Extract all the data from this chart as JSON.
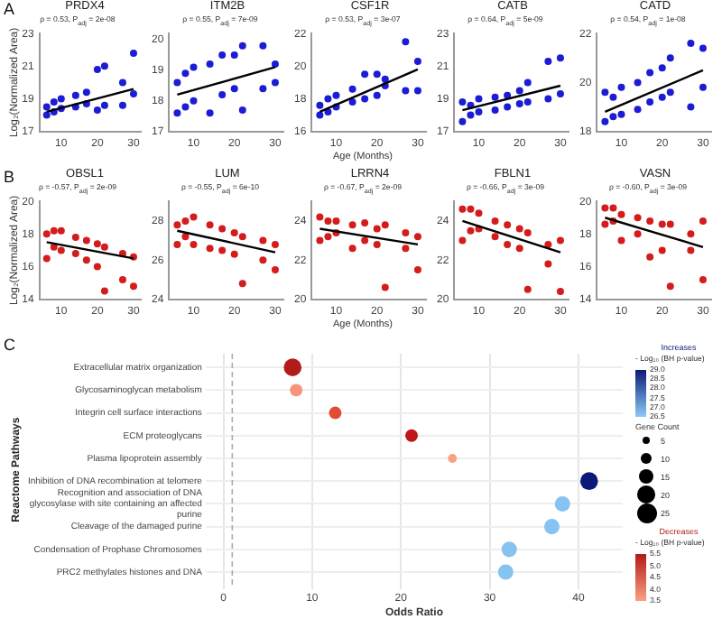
{
  "chart_data": [
    {
      "type": "scatter",
      "title": "PRDX4",
      "subtitle": "ρ = 0.53, P$_{adj}$ = 2e-08",
      "ylabel": "Log₂(Normalized Area)",
      "annotations": [
        "A"
      ],
      "xlim": [
        4,
        32
      ],
      "xticks": [
        10,
        20,
        30
      ],
      "ylim": [
        17,
        23
      ],
      "yticks": [
        17,
        19,
        21,
        23
      ],
      "marker": "circle",
      "series": [
        {
          "color": "#1c1cd4",
          "x": [
            6,
            6,
            8,
            8,
            10,
            10,
            14,
            14,
            17,
            17,
            20,
            20,
            22,
            22,
            27,
            27,
            30,
            30
          ],
          "values": [
            18.0,
            18.5,
            18.2,
            18.8,
            18.4,
            19.0,
            18.5,
            19.2,
            18.7,
            19.4,
            18.3,
            20.8,
            18.6,
            21.0,
            18.6,
            20.0,
            19.3,
            21.8
          ]
        },
        {
          "type": "line",
          "marker": "none",
          "color": "#000000",
          "x": [
            6,
            30
          ],
          "values": [
            18.2,
            19.6
          ]
        }
      ]
    },
    {
      "type": "scatter",
      "title": "ITM2B",
      "subtitle": "ρ = 0.55, P$_{adj}$ = 7e-09",
      "xlim": [
        4,
        32
      ],
      "xticks": [
        10,
        20,
        30
      ],
      "ylim": [
        17,
        20.2
      ],
      "yticks": [
        17,
        18,
        19,
        20
      ],
      "marker": "circle",
      "series": [
        {
          "color": "#1c1cd4",
          "x": [
            6,
            6,
            8,
            8,
            10,
            10,
            14,
            14,
            17,
            17,
            20,
            20,
            22,
            22,
            27,
            27,
            30,
            30
          ],
          "values": [
            17.6,
            18.6,
            17.8,
            18.9,
            18.0,
            19.1,
            17.6,
            19.2,
            18.2,
            19.5,
            18.4,
            19.5,
            17.7,
            19.8,
            18.4,
            19.8,
            18.6,
            19.2
          ]
        },
        {
          "type": "line",
          "marker": "none",
          "color": "#000000",
          "x": [
            6,
            30
          ],
          "values": [
            18.2,
            19.1
          ]
        }
      ]
    },
    {
      "type": "scatter",
      "title": "CSF1R",
      "subtitle": "ρ = 0.53, P$_{adj}$ = 3e-07",
      "xlabel": "Age (Months)",
      "xlim": [
        4,
        32
      ],
      "xticks": [
        10,
        20,
        30
      ],
      "ylim": [
        16,
        22
      ],
      "yticks": [
        16,
        18,
        20,
        22
      ],
      "marker": "circle",
      "series": [
        {
          "color": "#1c1cd4",
          "x": [
            6,
            6,
            8,
            8,
            10,
            10,
            14,
            14,
            17,
            17,
            20,
            20,
            22,
            22,
            27,
            27,
            30,
            30
          ],
          "values": [
            17.0,
            17.6,
            17.2,
            18.0,
            17.5,
            18.2,
            17.8,
            18.6,
            18.0,
            19.5,
            18.2,
            19.5,
            18.8,
            19.2,
            18.5,
            21.5,
            18.5,
            20.3
          ]
        },
        {
          "type": "line",
          "marker": "none",
          "color": "#000000",
          "x": [
            6,
            30
          ],
          "values": [
            17.2,
            19.8
          ]
        }
      ]
    },
    {
      "type": "scatter",
      "title": "CATB",
      "subtitle": "ρ = 0.64, P$_{adj}$ = 5e-09",
      "xlim": [
        4,
        32
      ],
      "xticks": [
        10,
        20,
        30
      ],
      "ylim": [
        17,
        23
      ],
      "yticks": [
        17,
        19,
        21,
        23
      ],
      "marker": "circle",
      "series": [
        {
          "color": "#1c1cd4",
          "x": [
            6,
            6,
            8,
            8,
            10,
            10,
            14,
            14,
            17,
            17,
            20,
            20,
            22,
            22,
            27,
            27,
            30,
            30
          ],
          "values": [
            17.6,
            18.8,
            18.0,
            18.6,
            18.2,
            19.0,
            18.3,
            19.1,
            18.5,
            19.2,
            18.7,
            19.5,
            18.8,
            20.0,
            19.0,
            21.3,
            19.3,
            21.5
          ]
        },
        {
          "type": "line",
          "marker": "none",
          "color": "#000000",
          "x": [
            6,
            30
          ],
          "values": [
            18.3,
            19.8
          ]
        }
      ]
    },
    {
      "type": "scatter",
      "title": "CATD",
      "subtitle": "ρ = 0.54, P$_{adj}$ = 1e-08",
      "xlim": [
        4,
        32
      ],
      "xticks": [
        10,
        20,
        30
      ],
      "ylim": [
        18,
        22
      ],
      "yticks": [
        18,
        20,
        22
      ],
      "marker": "circle",
      "series": [
        {
          "color": "#1c1cd4",
          "x": [
            6,
            6,
            8,
            8,
            10,
            10,
            14,
            14,
            17,
            17,
            20,
            20,
            22,
            22,
            27,
            27,
            30,
            30
          ],
          "values": [
            18.4,
            19.6,
            18.6,
            19.4,
            18.7,
            19.8,
            18.9,
            20.0,
            19.2,
            20.4,
            19.4,
            20.6,
            19.6,
            21.0,
            19.0,
            21.6,
            19.8,
            21.4
          ]
        },
        {
          "type": "line",
          "marker": "none",
          "color": "#000000",
          "x": [
            6,
            30
          ],
          "values": [
            18.8,
            20.5
          ]
        }
      ]
    },
    {
      "type": "scatter",
      "title": "OBSL1",
      "subtitle": "ρ = -0.57, P$_{adj}$ = 2e-09",
      "ylabel": "Log₂(Normalized Area)",
      "annotations": [
        "B"
      ],
      "xlim": [
        4,
        32
      ],
      "xticks": [
        10,
        20,
        30
      ],
      "ylim": [
        14,
        20
      ],
      "yticks": [
        14,
        16,
        18,
        20
      ],
      "marker": "circle",
      "series": [
        {
          "color": "#d41c1c",
          "x": [
            6,
            6,
            8,
            8,
            10,
            10,
            14,
            14,
            17,
            17,
            20,
            20,
            22,
            22,
            27,
            27,
            30,
            30
          ],
          "values": [
            16.5,
            18.0,
            17.2,
            18.2,
            17.0,
            18.2,
            16.8,
            17.8,
            16.4,
            17.6,
            16.0,
            17.4,
            14.5,
            17.2,
            15.2,
            16.8,
            14.8,
            16.6
          ]
        },
        {
          "type": "line",
          "marker": "none",
          "color": "#000000",
          "x": [
            6,
            30
          ],
          "values": [
            17.5,
            16.5
          ]
        }
      ]
    },
    {
      "type": "scatter",
      "title": "LUM",
      "subtitle": "ρ = -0.55, P$_{adj}$ = 6e-10",
      "xlim": [
        4,
        32
      ],
      "xticks": [
        10,
        20,
        30
      ],
      "ylim": [
        24,
        29
      ],
      "yticks": [
        24,
        26,
        28
      ],
      "marker": "circle",
      "series": [
        {
          "color": "#d41c1c",
          "x": [
            6,
            6,
            8,
            8,
            10,
            10,
            14,
            14,
            17,
            17,
            20,
            20,
            22,
            22,
            27,
            27,
            30,
            30
          ],
          "values": [
            26.8,
            27.8,
            27.2,
            28.0,
            26.8,
            28.2,
            26.6,
            27.8,
            26.5,
            27.6,
            26.3,
            27.4,
            24.8,
            27.2,
            26.0,
            27.0,
            25.5,
            26.8
          ]
        },
        {
          "type": "line",
          "marker": "none",
          "color": "#000000",
          "x": [
            6,
            30
          ],
          "values": [
            27.5,
            26.4
          ]
        }
      ]
    },
    {
      "type": "scatter",
      "title": "LRRN4",
      "subtitle": "ρ = -0.67, P$_{adj}$ = 2e-09",
      "xlabel": "Age (Months)",
      "xlim": [
        4,
        32
      ],
      "xticks": [
        10,
        20,
        30
      ],
      "ylim": [
        20,
        25
      ],
      "yticks": [
        20,
        22,
        24
      ],
      "marker": "circle",
      "series": [
        {
          "color": "#d41c1c",
          "x": [
            6,
            6,
            8,
            8,
            10,
            10,
            14,
            14,
            17,
            17,
            20,
            20,
            22,
            22,
            27,
            27,
            30,
            30
          ],
          "values": [
            23.0,
            24.2,
            23.2,
            24.0,
            23.4,
            24.0,
            22.6,
            23.8,
            23.0,
            23.9,
            22.8,
            23.6,
            20.6,
            23.8,
            22.6,
            23.4,
            21.5,
            23.2
          ]
        },
        {
          "type": "line",
          "marker": "none",
          "color": "#000000",
          "x": [
            6,
            30
          ],
          "values": [
            23.6,
            22.8
          ]
        }
      ]
    },
    {
      "type": "scatter",
      "title": "FBLN1",
      "subtitle": "ρ = -0.66, P$_{adj}$ = 3e-09",
      "xlim": [
        4,
        32
      ],
      "xticks": [
        10,
        20,
        30
      ],
      "ylim": [
        20,
        25
      ],
      "yticks": [
        20,
        22,
        24
      ],
      "marker": "circle",
      "series": [
        {
          "color": "#d41c1c",
          "x": [
            6,
            6,
            8,
            8,
            10,
            10,
            14,
            14,
            17,
            17,
            20,
            20,
            22,
            22,
            27,
            27,
            30,
            30
          ],
          "values": [
            23.0,
            24.6,
            23.5,
            24.6,
            23.6,
            24.4,
            23.2,
            24.0,
            22.8,
            23.8,
            22.6,
            23.6,
            20.5,
            23.4,
            21.8,
            22.8,
            20.4,
            23.0
          ]
        },
        {
          "type": "line",
          "marker": "none",
          "color": "#000000",
          "x": [
            6,
            30
          ],
          "values": [
            24.0,
            22.4
          ]
        }
      ]
    },
    {
      "type": "scatter",
      "title": "VASN",
      "subtitle": "ρ = -0.60, P$_{adj}$ = 3e-09",
      "xlim": [
        4,
        32
      ],
      "xticks": [
        10,
        20,
        30
      ],
      "ylim": [
        14,
        20
      ],
      "yticks": [
        14,
        16,
        18,
        20
      ],
      "marker": "circle",
      "series": [
        {
          "color": "#d41c1c",
          "x": [
            6,
            6,
            8,
            8,
            10,
            10,
            14,
            14,
            17,
            17,
            20,
            20,
            22,
            22,
            27,
            27,
            30,
            30
          ],
          "values": [
            18.6,
            19.6,
            18.8,
            19.6,
            17.6,
            19.2,
            18.0,
            19.0,
            16.6,
            18.8,
            17.0,
            18.6,
            14.8,
            18.6,
            17.0,
            18.0,
            15.2,
            18.8
          ]
        },
        {
          "type": "line",
          "marker": "none",
          "color": "#000000",
          "x": [
            6,
            30
          ],
          "values": [
            19.0,
            17.2
          ]
        }
      ]
    },
    {
      "type": "bubble",
      "orientation": "horizontal",
      "xlabel": "Odds Ratio",
      "ylabel": "Reactome Pathways",
      "annotations": [
        "C",
        "- Log₁₀ (BH p-value)",
        "5.5",
        "5.0",
        "4.5",
        "4.0",
        "3.5"
      ],
      "categories": [
        "Extracellular matrix organization",
        "Glycosaminoglycan metabolism",
        "Integrin cell surface interactions",
        "ECM proteoglycans",
        "Plasma lipoprotein assembly",
        "Inhibition of DNA recombination at telomere",
        "Recognition and association of DNA glycosylase with site containing an affected purine",
        "Cleavage of the damaged purine",
        "Condensation of Prophase Chromosomes",
        "PRC2 methylates histones and DNA"
      ],
      "xlim": [
        -2,
        45
      ],
      "xticks": [
        0,
        10,
        20,
        30,
        40
      ],
      "grid": true,
      "legend": "right",
      "legend_title": "Gene Count",
      "size_legend": [
        5,
        10,
        15,
        20,
        25
      ],
      "clabel": "- Log₁₀ (BH p-value)",
      "clim": [
        26.5,
        29
      ],
      "cticks": [
        {
          "value": 26.5,
          "label": "26.5"
        },
        {
          "value": 27,
          "label": "27.0"
        },
        {
          "value": 27.5,
          "label": "27.5"
        },
        {
          "value": 28,
          "label": "28.0"
        },
        {
          "value": 28.5,
          "label": "28.5"
        },
        {
          "value": 29,
          "label": "29.0"
        }
      ],
      "ref_lines": [
        {
          "axis": "x",
          "value": 1,
          "line_style": "dashed",
          "color": "#aaaaaa"
        }
      ],
      "series": [
        {
          "name": "Increases",
          "colors": [
            null,
            null,
            null,
            null,
            null,
            "#0b1a78",
            "#87c3f0",
            "#87c3f0",
            "#87c3f0",
            "#87c3f0"
          ],
          "values": [
            null,
            null,
            null,
            null,
            null,
            41.2,
            38.2,
            37,
            32.2,
            31.8
          ],
          "sizes": [
            null,
            null,
            null,
            null,
            null,
            20,
            15,
            15,
            15,
            15
          ]
        },
        {
          "name": "Decreases",
          "colors": [
            "#b31b1b",
            "#f7937a",
            "#e34a33",
            "#c0161b",
            "#fca082",
            null,
            null,
            null,
            null,
            null
          ],
          "values": [
            7.8,
            8.2,
            12.6,
            21.2,
            25.8,
            null,
            null,
            null,
            null,
            null
          ],
          "sizes": [
            20,
            10,
            10,
            10,
            5,
            null,
            null,
            null,
            null,
            null
          ]
        }
      ]
    }
  ]
}
